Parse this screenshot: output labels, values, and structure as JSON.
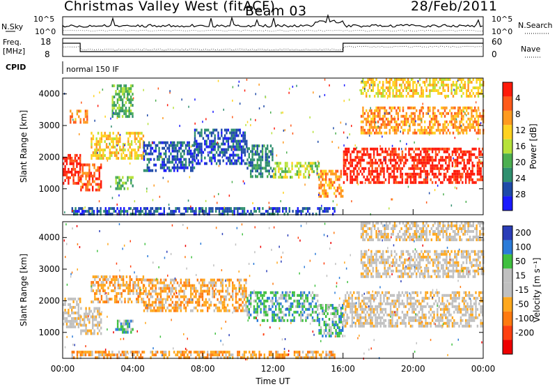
{
  "header": {
    "station": "Christmas Valley West (fitACF)",
    "beam": "Beam 03",
    "date": "28/Feb/2011"
  },
  "noise_panel": {
    "left_label": "N.Sky",
    "right_label": "N.Search",
    "tick_labels": [
      "10^5",
      "10^0"
    ]
  },
  "freq_panel": {
    "left_label_1": "Freq.",
    "left_label_2": "[MHz]",
    "left_ticks": [
      "18",
      "8"
    ],
    "right_label": "Nave",
    "right_ticks": [
      "60",
      "0"
    ]
  },
  "cpid": {
    "label": "CPID",
    "mode": "normal 150 IF"
  },
  "colors": {
    "power": [
      "#1a1aff",
      "#1e4aa8",
      "#2f8f6e",
      "#4caf50",
      "#b6e23a",
      "#ffd21f",
      "#ff9a1f",
      "#ff5a1a",
      "#ff1a0a"
    ],
    "velocity": [
      "#2a3db8",
      "#2b7bd8",
      "#40c040",
      "#c0c0c0",
      "#c0c0c0",
      "#ffa81e",
      "#ff7a10",
      "#ff4010",
      "#ee0000"
    ]
  },
  "chart_data": [
    {
      "type": "heatmap",
      "panel": "power",
      "ylabel": "Slant Range [km]",
      "ylim": [
        180,
        4500
      ],
      "yticks": [
        "1000",
        "2000",
        "3000",
        "4000"
      ],
      "xlim": [
        "00:00",
        "24:00"
      ],
      "colorbar_label": "Power [dB]",
      "colorbar_ticks": [
        "4",
        "8",
        "12",
        "16",
        "20",
        "24",
        "28"
      ],
      "regions": [
        {
          "t0": 0.0,
          "t1": 1.0,
          "r0": 1150,
          "r1": 2100,
          "level": 8
        },
        {
          "t0": 0.4,
          "t1": 1.4,
          "r0": 3100,
          "r1": 3500,
          "level": 6
        },
        {
          "t0": 1.0,
          "t1": 2.2,
          "r0": 1000,
          "r1": 1800,
          "level": 7
        },
        {
          "t0": 1.6,
          "t1": 4.6,
          "r0": 2000,
          "r1": 2800,
          "level": 5
        },
        {
          "t0": 2.8,
          "t1": 4.0,
          "r0": 3300,
          "r1": 4300,
          "level": 3
        },
        {
          "t0": 3.0,
          "t1": 4.0,
          "r0": 1000,
          "r1": 1400,
          "level": 3
        },
        {
          "t0": 4.6,
          "t1": 7.5,
          "r0": 1600,
          "r1": 2500,
          "level": 1
        },
        {
          "t0": 7.5,
          "t1": 10.5,
          "r0": 1800,
          "r1": 2900,
          "level": 1
        },
        {
          "t0": 10.5,
          "t1": 12.0,
          "r0": 1400,
          "r1": 2400,
          "level": 2
        },
        {
          "t0": 12.0,
          "t1": 14.6,
          "r0": 1350,
          "r1": 1850,
          "level": 4
        },
        {
          "t0": 14.6,
          "t1": 16.0,
          "r0": 800,
          "r1": 1600,
          "level": 6
        },
        {
          "t0": 16.0,
          "t1": 24.0,
          "r0": 1200,
          "r1": 2300,
          "level": 8
        },
        {
          "t0": 17.0,
          "t1": 24.0,
          "r0": 2800,
          "r1": 3600,
          "level": 6
        },
        {
          "t0": 17.0,
          "t1": 24.0,
          "r0": 3900,
          "r1": 4500,
          "level": 5
        },
        {
          "t0": 0.5,
          "t1": 15.5,
          "r0": 180,
          "r1": 420,
          "level": 1
        }
      ]
    },
    {
      "type": "heatmap",
      "panel": "velocity",
      "ylabel": "Slant Range [km]",
      "ylim": [
        180,
        4500
      ],
      "yticks": [
        "1000",
        "2000",
        "3000",
        "4000"
      ],
      "xlim": [
        "00:00",
        "24:00"
      ],
      "xticks": [
        "00:00",
        "04:00",
        "08:00",
        "12:00",
        "16:00",
        "20:00",
        "00:00"
      ],
      "xlabel": "Time UT",
      "colorbar_label": "Velocity [m s⁻¹]",
      "colorbar_ticks": [
        "200",
        "100",
        "50",
        "15",
        "-15",
        "-50",
        "-100",
        "-200"
      ],
      "regions": [
        {
          "t0": 0.0,
          "t1": 1.0,
          "r0": 1150,
          "r1": 2100,
          "level": 4
        },
        {
          "t0": 1.0,
          "t1": 2.2,
          "r0": 1000,
          "r1": 1800,
          "level": 4
        },
        {
          "t0": 1.6,
          "t1": 4.6,
          "r0": 2000,
          "r1": 2800,
          "level": 5
        },
        {
          "t0": 3.0,
          "t1": 4.0,
          "r0": 1000,
          "r1": 1400,
          "level": 2
        },
        {
          "t0": 4.6,
          "t1": 10.5,
          "r0": 1700,
          "r1": 2700,
          "level": 5
        },
        {
          "t0": 10.5,
          "t1": 14.6,
          "r0": 1400,
          "r1": 2300,
          "level": 2
        },
        {
          "t0": 14.6,
          "t1": 16.0,
          "r0": 900,
          "r1": 1900,
          "level": 2
        },
        {
          "t0": 16.0,
          "t1": 24.0,
          "r0": 1200,
          "r1": 2300,
          "level": 4
        },
        {
          "t0": 17.0,
          "t1": 24.0,
          "r0": 2800,
          "r1": 3600,
          "level": 4
        },
        {
          "t0": 17.0,
          "t1": 24.0,
          "r0": 3900,
          "r1": 4500,
          "level": 4
        },
        {
          "t0": 0.5,
          "t1": 15.5,
          "r0": 180,
          "r1": 420,
          "level": 5
        }
      ]
    }
  ]
}
